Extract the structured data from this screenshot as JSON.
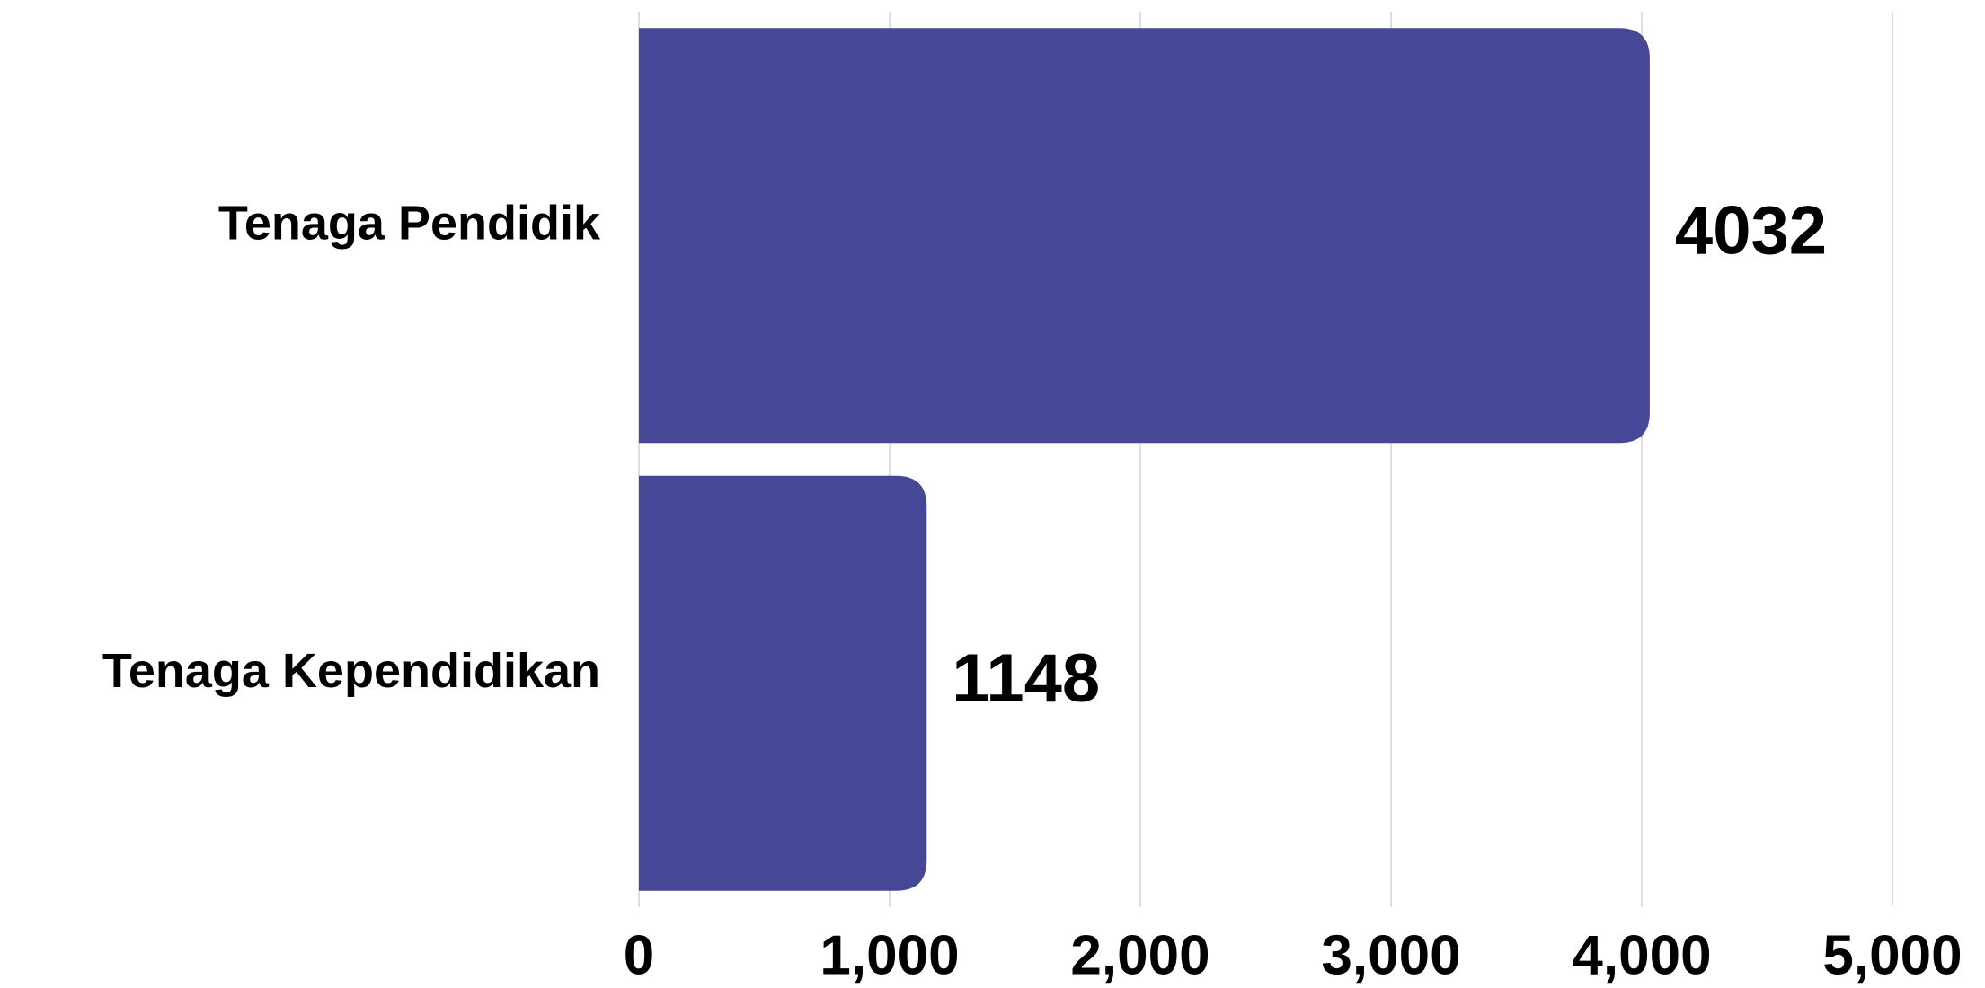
{
  "chart_data": {
    "type": "bar",
    "orientation": "horizontal",
    "categories": [
      "Tenaga Pendidik",
      "Tenaga Kependidikan"
    ],
    "values": [
      4032,
      1148
    ],
    "value_labels": [
      "4032",
      "1148"
    ],
    "xlim": [
      0,
      5000
    ],
    "x_ticks": [
      0,
      1000,
      2000,
      3000,
      4000,
      5000
    ],
    "x_tick_labels": [
      "0",
      "1,000",
      "2,000",
      "3,000",
      "4,000",
      "5,000"
    ],
    "title": "",
    "xlabel": "",
    "ylabel": "",
    "grid": "vertical",
    "legend": "none",
    "colors": {
      "bar": "#474798",
      "grid": "#d3d3d3",
      "text": "#000000"
    }
  }
}
